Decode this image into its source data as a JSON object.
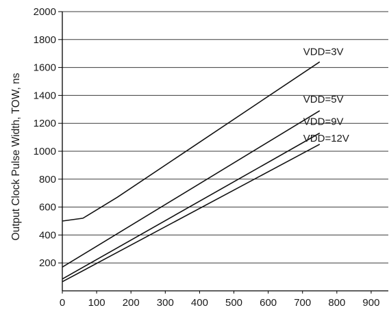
{
  "chart_data": {
    "type": "line",
    "title": "",
    "xlabel": "",
    "ylabel": "Output Clock Pulse Width, TOW, ns",
    "xlim": [
      0,
      950
    ],
    "ylim": [
      0,
      2000
    ],
    "x_ticks": [
      "0",
      "100",
      "200",
      "300",
      "400",
      "500",
      "600",
      "700",
      "800",
      "900"
    ],
    "y_ticks": [
      "200",
      "400",
      "600",
      "800",
      "1000",
      "1200",
      "1400",
      "1600",
      "1800",
      "2000"
    ],
    "grid": "horizontal",
    "series": [
      {
        "name": "VDD=3V",
        "x": [
          0,
          60,
          160,
          750
        ],
        "y": [
          500,
          520,
          670,
          1640
        ]
      },
      {
        "name": "VDD=5V",
        "x": [
          0,
          750
        ],
        "y": [
          170,
          1290
        ]
      },
      {
        "name": "VDD=9V",
        "x": [
          0,
          750
        ],
        "y": [
          85,
          1130
        ]
      },
      {
        "name": "VDD=12V",
        "x": [
          0,
          750
        ],
        "y": [
          65,
          1050
        ]
      }
    ]
  }
}
